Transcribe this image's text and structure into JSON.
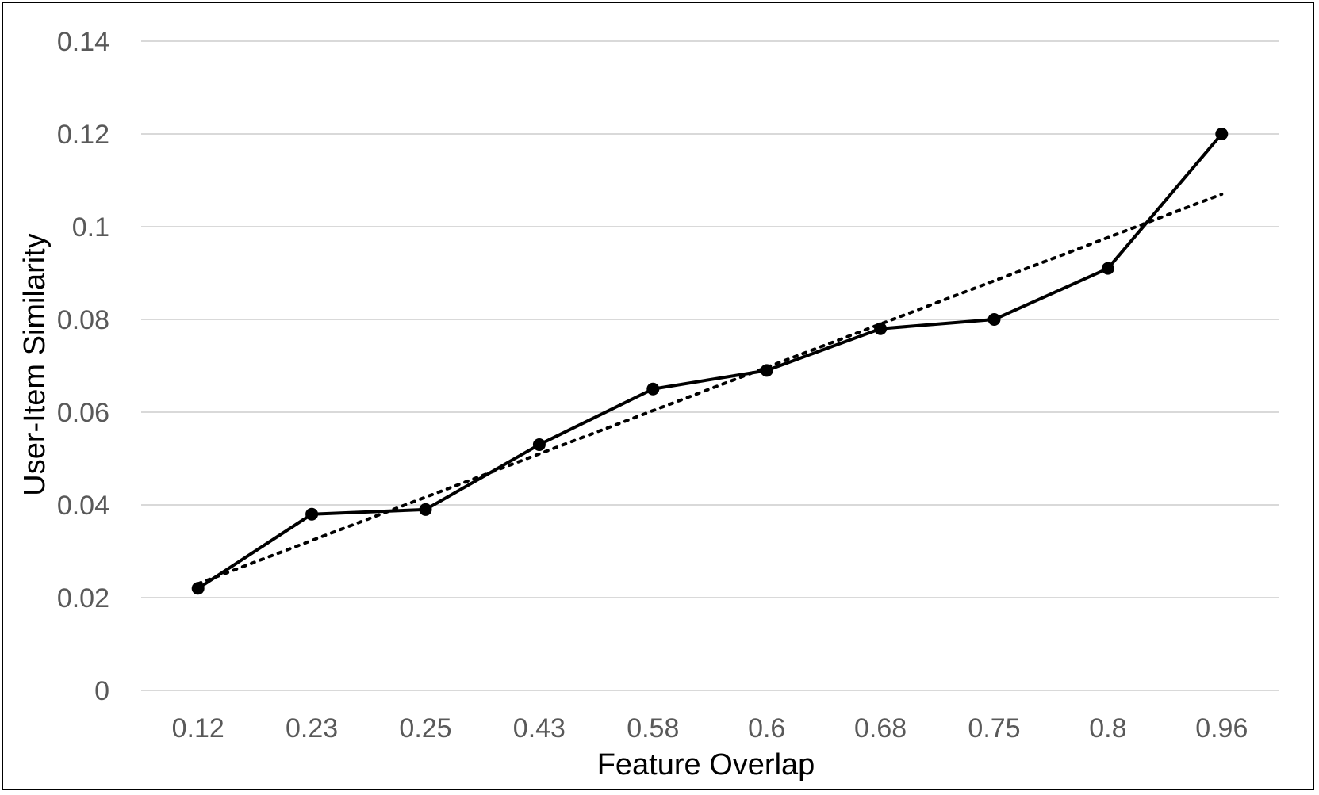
{
  "chart_data": {
    "type": "line",
    "title": "",
    "xlabel": "Feature Overlap",
    "ylabel": "User-Item Similarity",
    "categories": [
      "0.12",
      "0.23",
      "0.25",
      "0.43",
      "0.58",
      "0.6",
      "0.68",
      "0.75",
      "0.8",
      "0.96"
    ],
    "series": [
      {
        "values": [
          0.022,
          0.038,
          0.039,
          0.053,
          0.065,
          0.069,
          0.078,
          0.08,
          0.091,
          0.12
        ],
        "marker": "circle",
        "line_style": "solid",
        "color": "#000000"
      }
    ],
    "trendline": {
      "type": "linear",
      "line_style": "dotted",
      "color": "#000000",
      "start_value": 0.023,
      "end_value": 0.107
    },
    "ylim": [
      0,
      0.14
    ],
    "yticks": [
      "0",
      "0.02",
      "0.04",
      "0.06",
      "0.08",
      "0.1",
      "0.12",
      "0.14"
    ],
    "ytick_values": [
      0,
      0.02,
      0.04,
      0.06,
      0.08,
      0.1,
      0.12,
      0.14
    ],
    "grid": true,
    "legend": "none",
    "colors": {
      "grid": "#d9d9d9",
      "tick_text": "#595959",
      "axis_title_text": "#000000",
      "frame": "#000000"
    }
  }
}
